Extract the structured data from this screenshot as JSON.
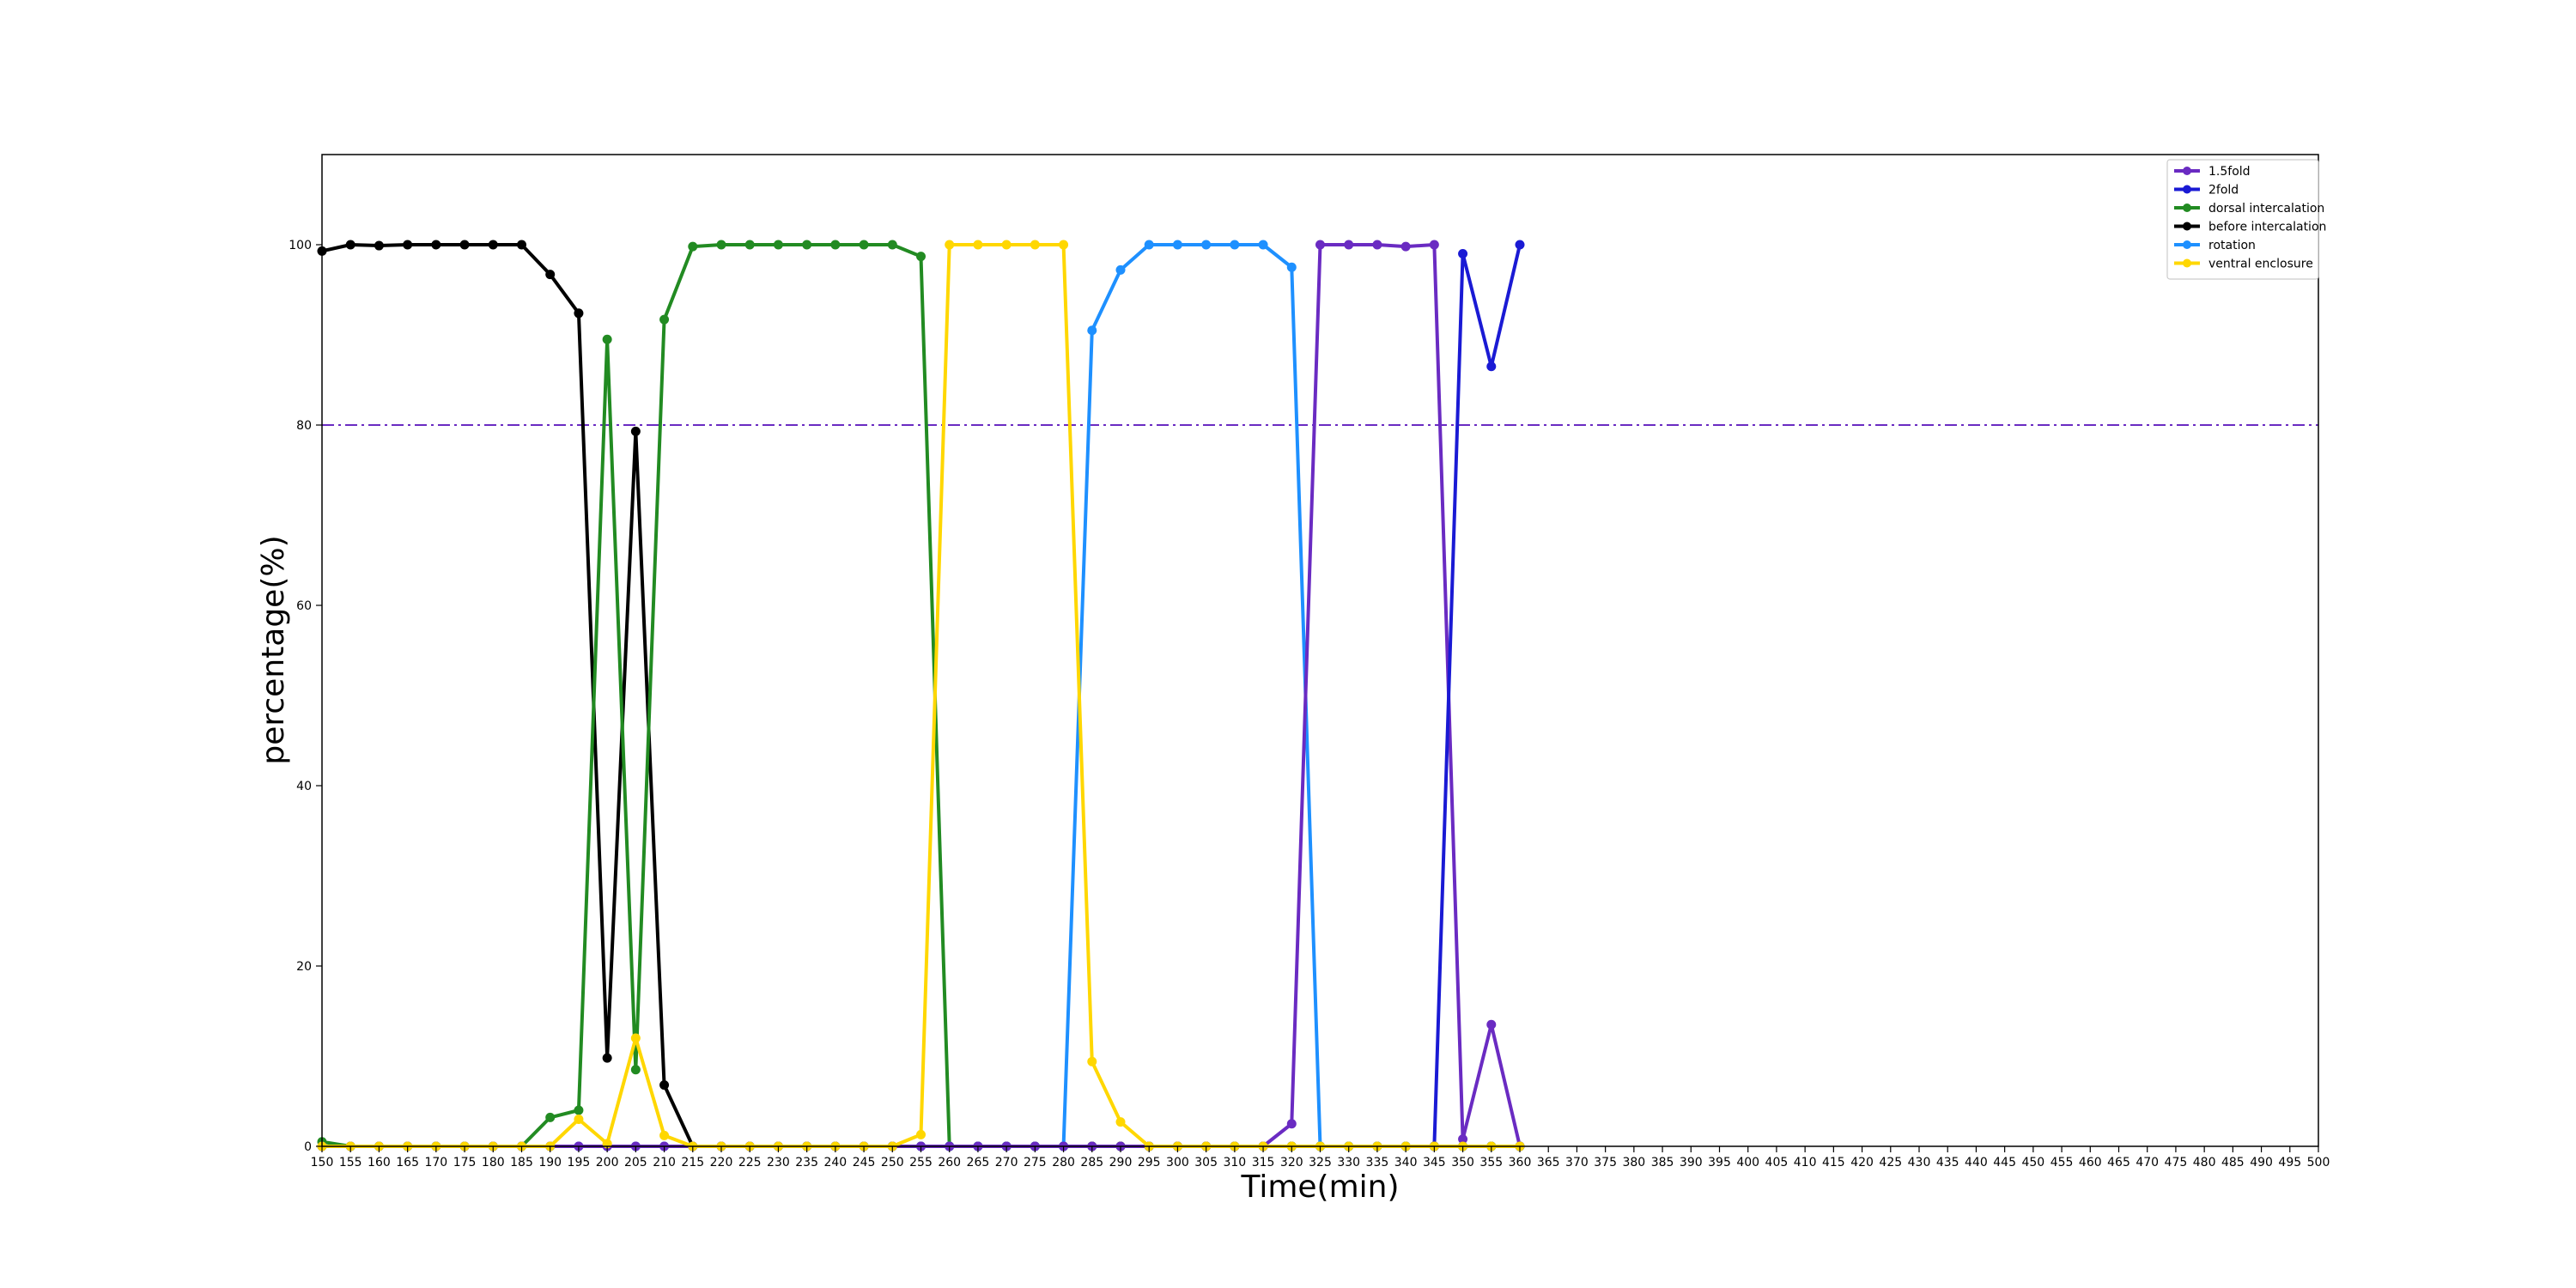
{
  "chart_data": {
    "type": "line",
    "title": "",
    "xlabel": "Time(min)",
    "ylabel": "percentage(%)",
    "xlim": [
      150,
      500
    ],
    "ylim": [
      0,
      110
    ],
    "x_ticks": [
      150,
      155,
      160,
      165,
      170,
      175,
      180,
      185,
      190,
      195,
      200,
      205,
      210,
      215,
      220,
      225,
      230,
      235,
      240,
      245,
      250,
      255,
      260,
      265,
      270,
      275,
      280,
      285,
      290,
      295,
      300,
      305,
      310,
      315,
      320,
      325,
      330,
      335,
      340,
      345,
      350,
      355,
      360,
      365,
      370,
      375,
      380,
      385,
      390,
      395,
      400,
      405,
      410,
      415,
      420,
      425,
      430,
      435,
      440,
      445,
      450,
      455,
      460,
      465,
      470,
      475,
      480,
      485,
      490,
      495,
      500
    ],
    "y_ticks": [
      0,
      20,
      40,
      60,
      80,
      100
    ],
    "grid": false,
    "legend_position": "top-right",
    "reference_line": {
      "y": 80,
      "style": "dash-dot",
      "color": "#6a2bc2"
    },
    "series": [
      {
        "name": "1.5fold",
        "color": "#6a2bc2",
        "x": [
          150,
          155,
          160,
          165,
          170,
          175,
          180,
          185,
          190,
          195,
          200,
          205,
          210,
          215,
          220,
          225,
          230,
          235,
          240,
          245,
          250,
          255,
          260,
          265,
          270,
          275,
          280,
          285,
          290,
          295,
          300,
          305,
          310,
          315,
          320,
          325,
          330,
          335,
          340,
          345,
          350,
          355,
          360
        ],
        "y": [
          0,
          0,
          0,
          0,
          0,
          0,
          0,
          0,
          0,
          0,
          0,
          0,
          0,
          0,
          0,
          0,
          0,
          0,
          0,
          0,
          0,
          0,
          0,
          0,
          0,
          0,
          0,
          0,
          0,
          0,
          0,
          0,
          0,
          0,
          2.5,
          100,
          100,
          100,
          99.8,
          100,
          0.8,
          13.5,
          0
        ]
      },
      {
        "name": "2fold",
        "color": "#1a1ad4",
        "x": [
          345,
          350,
          355,
          360
        ],
        "y": [
          0,
          99,
          86.5,
          100
        ]
      },
      {
        "name": "dorsal intercalation",
        "color": "#228b22",
        "x": [
          150,
          155,
          160,
          165,
          170,
          175,
          180,
          185,
          190,
          195,
          200,
          205,
          210,
          215,
          220,
          225,
          230,
          235,
          240,
          245,
          250,
          255,
          260,
          265,
          270,
          275,
          280,
          285,
          290,
          295,
          300,
          305,
          310,
          315,
          320,
          325,
          330,
          335,
          340,
          345,
          350,
          355,
          360
        ],
        "y": [
          0.5,
          0,
          0,
          0,
          0,
          0,
          0,
          0,
          3.2,
          4,
          89.5,
          8.5,
          91.7,
          99.8,
          100,
          100,
          100,
          100,
          100,
          100,
          100,
          98.7,
          0,
          0,
          0,
          0,
          0,
          0,
          0,
          0,
          0,
          0,
          0,
          0,
          0,
          0,
          0,
          0,
          0,
          0,
          0,
          0,
          0
        ]
      },
      {
        "name": "before intercalation",
        "color": "#000000",
        "x": [
          150,
          155,
          160,
          165,
          170,
          175,
          180,
          185,
          190,
          195,
          200,
          205,
          210,
          215,
          220,
          225,
          230,
          235,
          240,
          245,
          250,
          255,
          260,
          265,
          270,
          275,
          280,
          285,
          290,
          295,
          300,
          305,
          310,
          315,
          320,
          325,
          330,
          335,
          340,
          345,
          350,
          355,
          360
        ],
        "y": [
          99.3,
          100,
          99.9,
          100,
          100,
          100,
          100,
          100,
          96.7,
          92.4,
          9.8,
          79.3,
          6.8,
          0,
          0,
          0,
          0,
          0,
          0,
          0,
          0,
          0,
          0,
          0,
          0,
          0,
          0,
          0,
          0,
          0,
          0,
          0,
          0,
          0,
          0,
          0,
          0,
          0,
          0,
          0,
          0,
          0,
          0
        ]
      },
      {
        "name": "rotation",
        "color": "#1e90ff",
        "x": [
          150,
          155,
          160,
          165,
          170,
          175,
          180,
          185,
          190,
          195,
          200,
          205,
          210,
          215,
          220,
          225,
          230,
          235,
          240,
          245,
          250,
          255,
          260,
          265,
          270,
          275,
          280,
          285,
          290,
          295,
          300,
          305,
          310,
          315,
          320,
          325,
          330,
          335,
          340,
          345,
          350,
          355,
          360
        ],
        "y": [
          0,
          0,
          0,
          0,
          0,
          0,
          0,
          0,
          0,
          0,
          0,
          0,
          0,
          0,
          0,
          0,
          0,
          0,
          0,
          0,
          0,
          0,
          0,
          0,
          0,
          0,
          0,
          90.5,
          97.2,
          100,
          100,
          100,
          100,
          100,
          97.5,
          0,
          0,
          0,
          0,
          0,
          0,
          0,
          0
        ]
      },
      {
        "name": "ventral enclosure",
        "color": "#ffd700",
        "x": [
          150,
          155,
          160,
          165,
          170,
          175,
          180,
          185,
          190,
          195,
          200,
          205,
          210,
          215,
          220,
          225,
          230,
          235,
          240,
          245,
          250,
          255,
          260,
          265,
          270,
          275,
          280,
          285,
          290,
          295,
          300,
          305,
          310,
          315,
          320,
          325,
          330,
          335,
          340,
          345,
          350,
          355,
          360
        ],
        "y": [
          0,
          0,
          0,
          0,
          0,
          0,
          0,
          0,
          0,
          3,
          0.3,
          12,
          1.2,
          0,
          0,
          0,
          0,
          0,
          0,
          0,
          0,
          1.3,
          100,
          100,
          100,
          100,
          100,
          9.4,
          2.7,
          0,
          0,
          0,
          0,
          0,
          0,
          0,
          0,
          0,
          0,
          0,
          0,
          0,
          0
        ]
      }
    ]
  }
}
